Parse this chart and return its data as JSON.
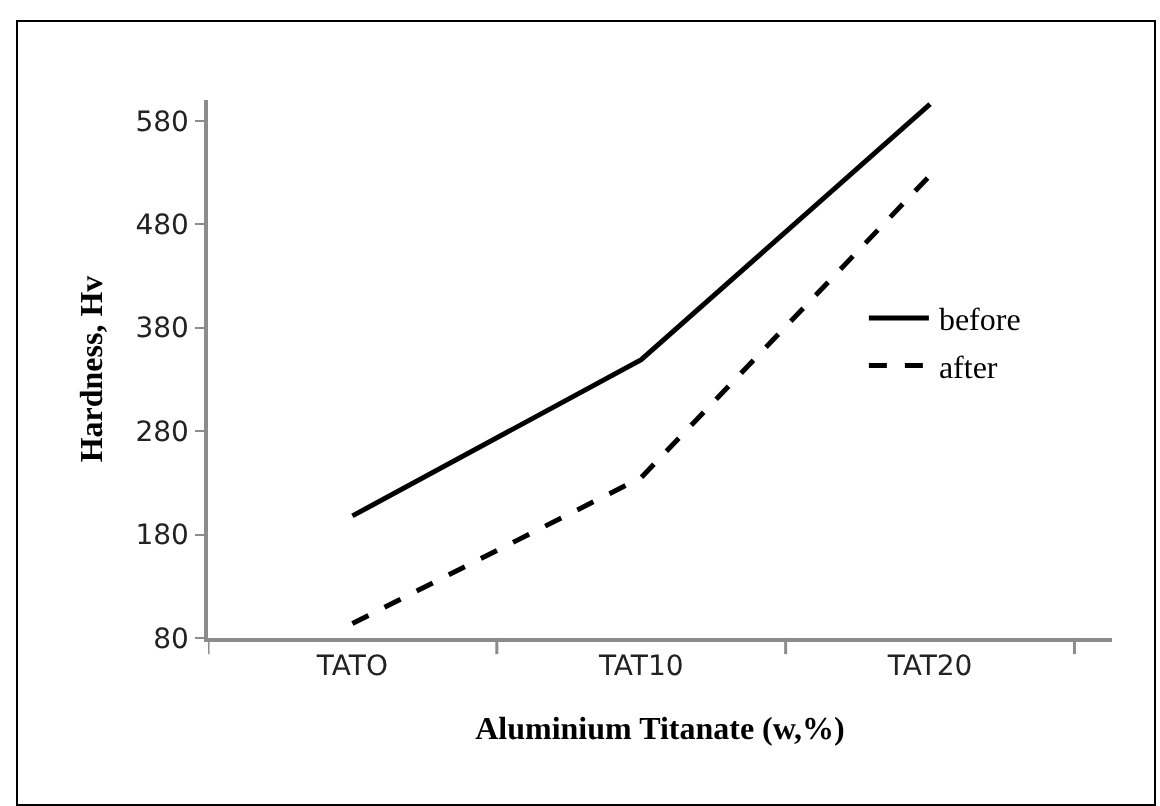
{
  "chart_data": {
    "type": "line",
    "xlabel": "Aluminium Titanate (w,%)",
    "ylabel": "Hardness, Hv",
    "categories": [
      "TATO",
      "TAT10",
      "TAT20"
    ],
    "series": [
      {
        "name": "before",
        "color": "#000000",
        "line_style": "solid",
        "values": [
          198,
          349,
          596
        ]
      },
      {
        "name": "after",
        "color": "#000000",
        "line_style": "dashed",
        "values": [
          94,
          235,
          527
        ]
      }
    ],
    "ylim": [
      80,
      600
    ],
    "yticks": [
      80,
      180,
      280,
      380,
      480,
      580
    ],
    "grid": false,
    "legend": "right",
    "marker": "none"
  }
}
